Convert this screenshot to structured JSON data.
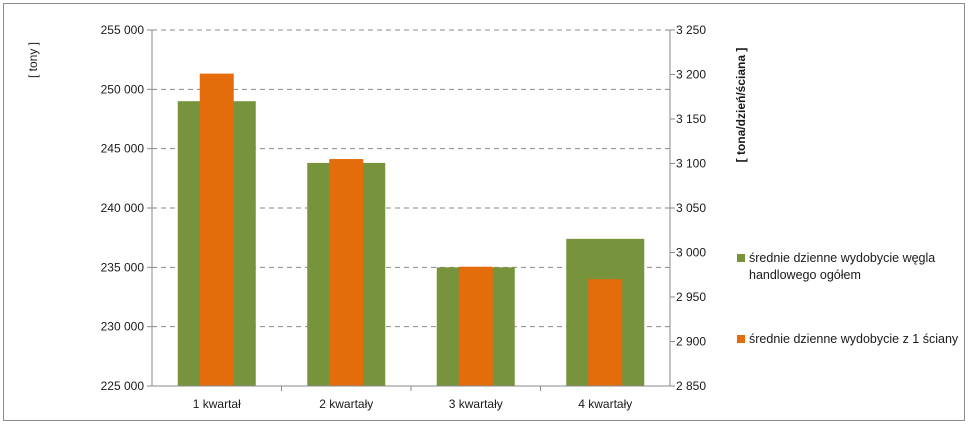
{
  "chart_data": {
    "type": "bar",
    "categories": [
      "1 kwartał",
      "2 kwartały",
      "3 kwartały",
      "4 kwartały"
    ],
    "series": [
      {
        "name": "średnie dzienne wydobycie węgla handlowego ogółem",
        "axis": "left",
        "color": "#77933c",
        "values": [
          249000,
          243800,
          235000,
          237400
        ]
      },
      {
        "name": "średnie dzienne wydobycie z 1 ściany",
        "axis": "right",
        "color": "#e46c0a",
        "values": [
          3201,
          3105,
          2984,
          2970
        ]
      }
    ],
    "ylabel": "[ tony ]",
    "y2label": "[ tona/dzień/ściana ]",
    "ylim": [
      225000,
      255000
    ],
    "y2lim": [
      2850,
      3250
    ],
    "yticks": [
      "225 000",
      "230 000",
      "235 000",
      "240 000",
      "245 000",
      "250 000",
      "255 000"
    ],
    "y2ticks": [
      "2 850",
      "2 900",
      "2 950",
      "3 000",
      "3 050",
      "3 100",
      "3 150",
      "3 200",
      "3 250"
    ],
    "grid": "horizontal dashed",
    "legend": "right"
  }
}
